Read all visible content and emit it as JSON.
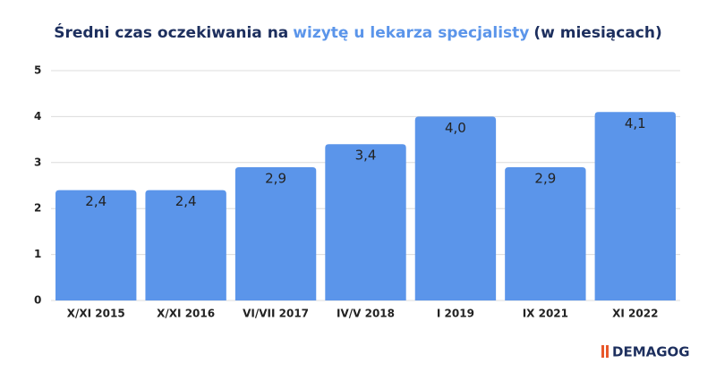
{
  "chart_data": {
    "type": "bar",
    "title": [
      "Średni czas oczekiwania na",
      "wizytę u lekarza specjalisty",
      "(w miesiącach)"
    ],
    "title_colors": [
      "#1d2f5e",
      "#5b95ea",
      "#1d2f5e"
    ],
    "categories": [
      "X/XI 2015",
      "X/XI 2016",
      "VI/VII 2017",
      "IV/V 2018",
      "I 2019",
      "IX 2021",
      "XI 2022"
    ],
    "values": [
      2.4,
      2.4,
      2.9,
      3.4,
      4.0,
      2.9,
      4.1
    ],
    "value_labels": [
      "2,4",
      "2,4",
      "2,9",
      "3,4",
      "4,0",
      "2,9",
      "4,1"
    ],
    "color": "#5b95ea",
    "ylim": [
      0,
      5
    ],
    "yticks": [
      0,
      1,
      2,
      3,
      4,
      5
    ],
    "grid": true,
    "logo": "DEMAGOG"
  }
}
